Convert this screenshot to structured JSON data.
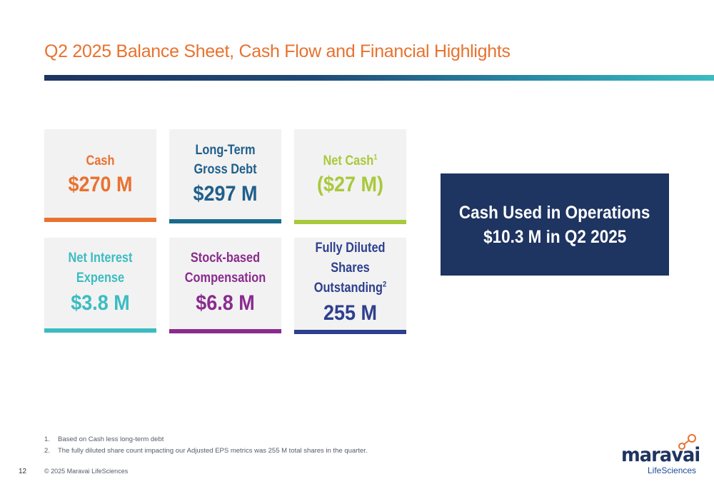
{
  "slide": {
    "title": "Q2 2025 Balance Sheet, Cash Flow and Financial Highlights",
    "page_number": "12",
    "copyright": "© 2025 Maravai LifeSciences"
  },
  "cards": [
    {
      "label_lines": [
        "Cash"
      ],
      "value": "$270 M",
      "color": "#e8722f",
      "bar_color": "#e8722f"
    },
    {
      "label_lines": [
        "Long-Term",
        "Gross Debt"
      ],
      "value": "$297 M",
      "color": "#1f5f8b",
      "bar_color": "#1a6a8a"
    },
    {
      "label_lines": [
        "Net Cash"
      ],
      "label_sup": "1",
      "value": "($27 M)",
      "color": "#a8c93b",
      "bar_color": "#a8c93b"
    },
    {
      "label_lines": [
        "Net Interest",
        "Expense"
      ],
      "value": "$3.8 M",
      "color": "#3bbcc2",
      "bar_color": "#3bbcc2"
    },
    {
      "label_lines": [
        "Stock-based",
        "Compensation"
      ],
      "value": "$6.8 M",
      "color": "#8a2b8f",
      "bar_color": "#8a2b8f"
    },
    {
      "label_lines": [
        "Fully Diluted",
        "Shares",
        "Outstanding"
      ],
      "label_sup": "2",
      "value": "255 M",
      "color": "#2d3f8e",
      "bar_color": "#2d3f8e"
    }
  ],
  "operations": {
    "line1": "Cash Used in Operations",
    "line2": "$10.3 M in Q2 2025",
    "bg_color": "#1e3461"
  },
  "footnotes": [
    {
      "num": "1.",
      "text": "Based on Cash less long-term debt"
    },
    {
      "num": "2.",
      "text": "The fully diluted share count impacting our Adjusted EPS metrics was 255 M total shares in the quarter."
    }
  ],
  "logo": {
    "brand": "maravai",
    "sub": "LifeSciences",
    "icon": "molecule-icon",
    "accent": "#e8722f"
  }
}
